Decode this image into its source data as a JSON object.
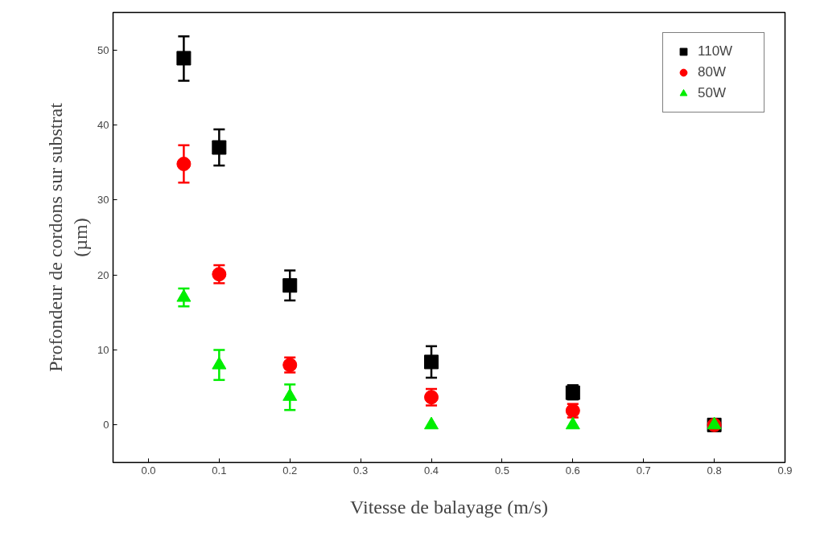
{
  "chart_data": {
    "type": "scatter",
    "xlabel": "Vitesse de balayage (m/s)",
    "ylabel": "Profondeur de cordons sur substrat\n(µm)",
    "xlim": [
      -0.05,
      0.9
    ],
    "ylim": [
      -5,
      55
    ],
    "xticks": [
      {
        "value": 0,
        "label": "0.0"
      },
      {
        "value": 0.1,
        "label": "0.1"
      },
      {
        "value": 0.2,
        "label": "0.2"
      },
      {
        "value": 0.3,
        "label": "0.3"
      },
      {
        "value": 0.4,
        "label": "0.4"
      },
      {
        "value": 0.5,
        "label": "0.5"
      },
      {
        "value": 0.6,
        "label": "0.6"
      },
      {
        "value": 0.7,
        "label": "0.7"
      },
      {
        "value": 0.8,
        "label": "0.8"
      },
      {
        "value": 0.9,
        "label": "0.9"
      }
    ],
    "yticks": [
      0,
      10,
      20,
      30,
      40,
      50
    ],
    "grid": false,
    "legend": "top right",
    "x": [
      0.05,
      0.1,
      0.2,
      0.4,
      0.6,
      0.8
    ],
    "series": [
      {
        "name": "110W",
        "color": "#000000",
        "marker": "square",
        "values": [
          48.9,
          37.0,
          18.6,
          8.4,
          4.3,
          0
        ],
        "errors": [
          [
            45.9,
            51.8
          ],
          [
            34.6,
            39.4
          ],
          [
            16.6,
            20.6
          ],
          [
            6.3,
            10.5
          ],
          [
            3.4,
            5.3
          ],
          null
        ]
      },
      {
        "name": "80W",
        "color": "#ff0000",
        "marker": "circle",
        "values": [
          34.8,
          20.1,
          8.0,
          3.7,
          1.9,
          0
        ],
        "errors": [
          [
            32.3,
            37.3
          ],
          [
            18.9,
            21.3
          ],
          [
            7.0,
            9.0
          ],
          [
            2.6,
            4.8
          ],
          [
            1.0,
            2.8
          ],
          null
        ]
      },
      {
        "name": "50W",
        "color": "#00ee00",
        "marker": "triangle",
        "values": [
          17.0,
          8.0,
          3.8,
          0,
          0,
          0
        ],
        "errors": [
          [
            15.8,
            18.2
          ],
          [
            6.0,
            10.0
          ],
          [
            2.0,
            5.4
          ],
          null,
          null,
          null
        ]
      }
    ]
  }
}
